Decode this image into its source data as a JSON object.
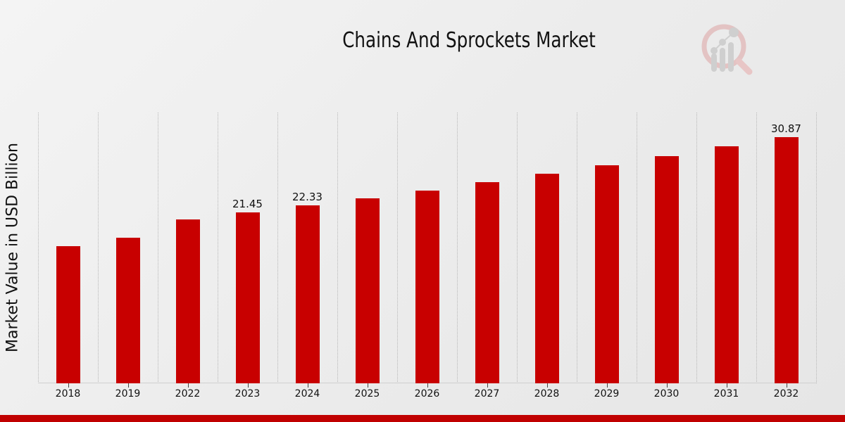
{
  "title": "Chains And Sprockets Market",
  "colors": {
    "bar": "#c80000",
    "footer": "#c00000",
    "background": "#ececec"
  },
  "logo": {
    "icon": "analytics-magnifier-logo-icon"
  },
  "chart_data": {
    "type": "bar",
    "title": "Chains And Sprockets Market",
    "xlabel": "",
    "ylabel": "Market Value in USD Billion",
    "categories": [
      "2018",
      "2019",
      "2022",
      "2023",
      "2024",
      "2025",
      "2026",
      "2027",
      "2028",
      "2029",
      "2030",
      "2031",
      "2032"
    ],
    "values": [
      17.2,
      18.25,
      20.55,
      21.45,
      22.33,
      23.2,
      24.16,
      25.22,
      26.28,
      27.34,
      28.48,
      29.72,
      30.87
    ],
    "labels": [
      "",
      "",
      "",
      "21.45",
      "22.33",
      "",
      "",
      "",
      "",
      "",
      "",
      "",
      "30.87"
    ],
    "ylim": [
      0,
      34
    ],
    "grid": true,
    "legend": "none"
  }
}
